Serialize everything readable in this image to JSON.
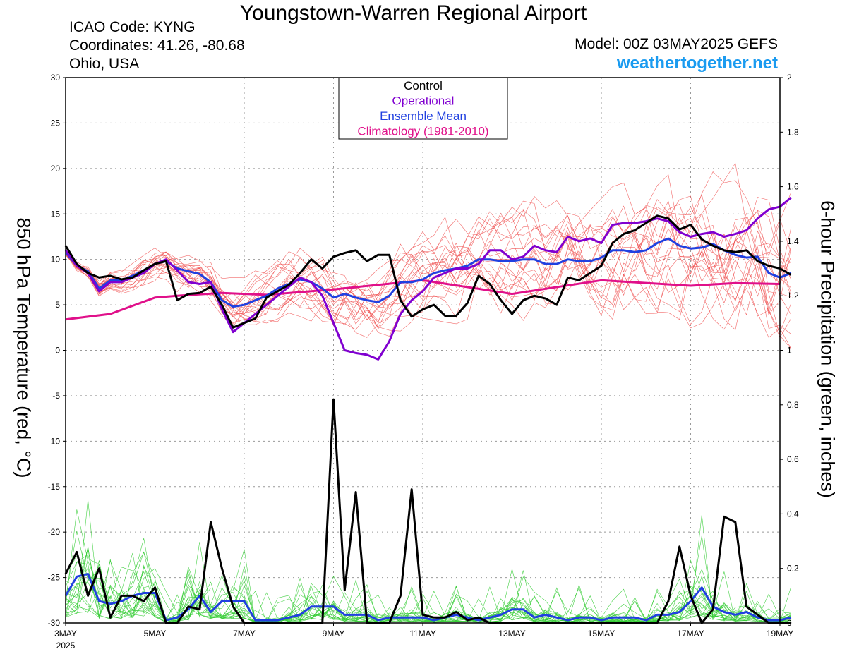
{
  "header": {
    "title": "Youngstown-Warren Regional Airport",
    "icao": "ICAO Code: KYNG",
    "coords": "Coordinates: 41.26, -80.68",
    "region": "Ohio, USA",
    "model": "Model: 00Z 03MAY2025 GEFS",
    "site": "weathertogether.net"
  },
  "chart_data": {
    "type": "line",
    "ylabel": "850 hPa Temperature (red, °C)",
    "y2label": "6-hour Precipitation (green, inches)",
    "ylim": [
      -30,
      30
    ],
    "y2lim": [
      0,
      2
    ],
    "xlim": [
      0,
      16
    ],
    "yticks": [
      "30",
      "25",
      "20",
      "15",
      "10",
      "5",
      "0",
      "-5",
      "-10",
      "-15",
      "-20",
      "-25",
      "-30"
    ],
    "y2ticks": [
      "2",
      "1.8",
      "1.6",
      "1.4",
      "1.2",
      "1",
      "0.8",
      "0.6",
      "0.4",
      "0.2",
      "0"
    ],
    "xticks": [
      {
        "label": "3MAY",
        "sub": "2025",
        "day": 0
      },
      {
        "label": "5MAY",
        "day": 2
      },
      {
        "label": "7MAY",
        "day": 4
      },
      {
        "label": "9MAY",
        "day": 6
      },
      {
        "label": "11MAY",
        "day": 8
      },
      {
        "label": "13MAY",
        "day": 10
      },
      {
        "label": "15MAY",
        "day": 12
      },
      {
        "label": "17MAY",
        "day": 14
      },
      {
        "label": "19MAY",
        "day": 16
      }
    ],
    "grid": true,
    "legend_position": "top-center",
    "legend": [
      {
        "label": "Control",
        "color": "#000000"
      },
      {
        "label": "Operational",
        "color": "#8000d0"
      },
      {
        "label": "Ensemble Mean",
        "color": "#2040e0"
      },
      {
        "label": "Climatology (1981-2010)",
        "color": "#e0108a"
      }
    ],
    "colors": {
      "members_temp": "#f05050",
      "members_precip": "#33cc33"
    },
    "step_hours": 6,
    "series": [
      {
        "name": "Control",
        "color": "#000000",
        "axis": "temp",
        "values": [
          11.5,
          9.5,
          8.5,
          8.0,
          8.2,
          7.8,
          8.0,
          8.8,
          9.5,
          9.8,
          5.5,
          6.2,
          6.3,
          7.0,
          5.0,
          2.5,
          3.0,
          3.5,
          5.8,
          6.5,
          7.2,
          8.5,
          10.0,
          9.0,
          10.3,
          10.7,
          11.0,
          9.8,
          10.5,
          10.5,
          5.5,
          3.7,
          4.5,
          5.0,
          3.8,
          3.8,
          5.2,
          8.2,
          7.3,
          5.5,
          4.0,
          5.5,
          6.0,
          5.7,
          5.0,
          8.0,
          7.7,
          8.5,
          9.3,
          11.8,
          12.8,
          13.2,
          14.0,
          14.8,
          14.5,
          13.3,
          13.8,
          12.2,
          11.5,
          11.0,
          10.8,
          11.0,
          9.8,
          9.3,
          9.0,
          8.3
        ]
      },
      {
        "name": "Operational",
        "color": "#8000d0",
        "axis": "temp",
        "values": [
          11.0,
          9.3,
          8.5,
          6.5,
          7.5,
          7.5,
          8.0,
          8.5,
          9.5,
          10.0,
          8.8,
          7.5,
          7.3,
          7.5,
          4.5,
          2.0,
          3.0,
          4.0,
          5.0,
          6.0,
          7.0,
          8.0,
          7.5,
          6.0,
          3.0,
          0.0,
          -0.3,
          -0.5,
          -1.0,
          1.0,
          4.0,
          5.5,
          6.5,
          8.0,
          8.5,
          9.0,
          9.0,
          9.5,
          11.0,
          11.0,
          10.0,
          10.3,
          11.5,
          11.0,
          10.8,
          12.5,
          12.0,
          12.3,
          11.8,
          13.8,
          14.0,
          14.0,
          14.2,
          14.5,
          14.2,
          13.0,
          12.5,
          12.8,
          13.0,
          12.5,
          12.8,
          13.2,
          14.5,
          15.5,
          15.8,
          16.8
        ]
      },
      {
        "name": "Ensemble Mean",
        "color": "#2040e0",
        "axis": "temp",
        "values": [
          10.8,
          9.3,
          8.7,
          6.8,
          7.7,
          7.7,
          8.2,
          8.8,
          9.5,
          9.8,
          9.0,
          8.7,
          8.4,
          7.5,
          5.5,
          4.8,
          5.0,
          5.5,
          6.0,
          6.8,
          7.3,
          7.8,
          7.5,
          6.8,
          5.8,
          6.2,
          5.8,
          5.5,
          5.3,
          6.0,
          7.5,
          7.5,
          7.8,
          8.5,
          8.8,
          9.0,
          9.3,
          10.0,
          10.0,
          9.8,
          9.8,
          10.0,
          10.0,
          9.5,
          9.5,
          10.0,
          9.8,
          9.8,
          10.2,
          11.0,
          11.0,
          10.8,
          11.0,
          11.8,
          12.3,
          11.5,
          11.2,
          11.3,
          11.7,
          11.0,
          10.5,
          10.2,
          10.3,
          8.5,
          8.0,
          8.5
        ]
      },
      {
        "name": "Climatology (1981-2010)",
        "color": "#e0108a",
        "axis": "temp",
        "x": [
          0,
          1,
          2,
          2.5,
          3.5,
          4.5,
          6,
          7,
          8,
          10,
          12,
          14,
          15,
          16
        ],
        "values": [
          3.4,
          4.0,
          5.8,
          6.0,
          6.3,
          6.1,
          6.7,
          7.2,
          7.7,
          6.2,
          7.7,
          7.1,
          7.4,
          7.3
        ]
      },
      {
        "name": "Control",
        "color": "#000000",
        "axis": "precip",
        "values": [
          0.18,
          0.26,
          0.1,
          0.2,
          0.02,
          0.1,
          0.1,
          0.08,
          0.13,
          0.0,
          0.0,
          0.06,
          0.05,
          0.37,
          0.2,
          0.06,
          0.0,
          0.0,
          0.0,
          0.0,
          0.0,
          0.0,
          0.0,
          0.0,
          0.82,
          0.12,
          0.48,
          0.0,
          0.0,
          0.0,
          0.1,
          0.49,
          0.03,
          0.02,
          0.02,
          0.04,
          0.01,
          0.02,
          0.0,
          0.0,
          0.0,
          0.0,
          0.0,
          0.0,
          0.0,
          0.0,
          0.0,
          0.0,
          0.0,
          0.0,
          0.0,
          0.0,
          0.0,
          0.0,
          0.08,
          0.28,
          0.1,
          0.0,
          0.05,
          0.39,
          0.37,
          0.06,
          0.03,
          0.0,
          0.0,
          0.0
        ]
      },
      {
        "name": "Ensemble Mean",
        "color": "#2040e0",
        "axis": "precip",
        "values": [
          0.1,
          0.17,
          0.18,
          0.08,
          0.07,
          0.08,
          0.1,
          0.11,
          0.11,
          0.01,
          0.02,
          0.05,
          0.1,
          0.04,
          0.08,
          0.08,
          0.08,
          0.01,
          0.01,
          0.01,
          0.02,
          0.03,
          0.06,
          0.06,
          0.06,
          0.03,
          0.03,
          0.03,
          0.01,
          0.02,
          0.02,
          0.02,
          0.02,
          0.01,
          0.02,
          0.03,
          0.02,
          0.01,
          0.02,
          0.03,
          0.05,
          0.05,
          0.02,
          0.03,
          0.02,
          0.01,
          0.02,
          0.02,
          0.01,
          0.02,
          0.02,
          0.02,
          0.01,
          0.03,
          0.03,
          0.04,
          0.08,
          0.13,
          0.06,
          0.04,
          0.03,
          0.04,
          0.02,
          0.01,
          0.01,
          0.02
        ]
      }
    ]
  }
}
